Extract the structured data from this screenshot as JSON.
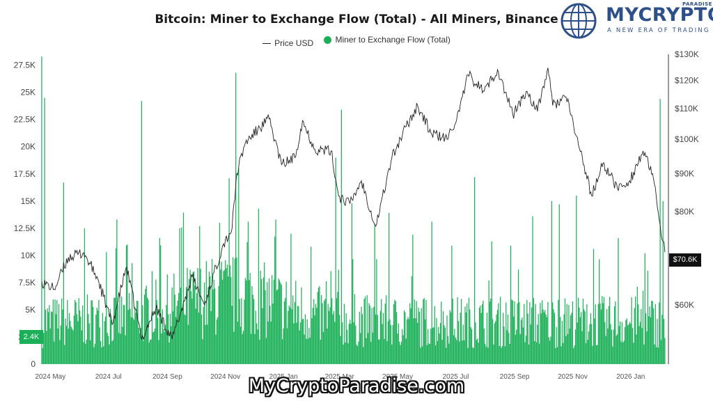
{
  "brand": {
    "name": "MYCRYPTO",
    "small": "PARADISE",
    "tagline": "A NEW ERA OF TRADING"
  },
  "watermark": "MyCryptoParadise.com",
  "colors": {
    "flow": "#1bb057",
    "price": "#222222",
    "brand_blue": "#2d4f8a",
    "brand_red": "#d8262e",
    "axis_text": "#444444"
  },
  "chart_data": {
    "type": "bar",
    "title": "Bitcoin: Miner to Exchange Flow (Total) - All Miners, Binance",
    "legend": [
      "Price USD",
      "Miner to Exchange Flow (Total)"
    ],
    "legend_position": "top-center",
    "grid": false,
    "x_ticks": [
      "2024 May",
      "2024 Jul",
      "2024 Sep",
      "2024 Nov",
      "2025 Jan",
      "2025 Mar",
      "2025 May",
      "2025 Jul",
      "2025 Sep",
      "2025 Nov",
      "2026 Jan"
    ],
    "x_range": [
      "2024-04-22",
      "2026-02-06"
    ],
    "y_left": {
      "ticks": [
        "0",
        "2.5K",
        "5K",
        "7.5K",
        "10K",
        "12.5K",
        "15K",
        "17.5K",
        "20K",
        "22.5K",
        "25K",
        "27.5K"
      ],
      "range": [
        0,
        28500
      ]
    },
    "y_right": {
      "scale": "log",
      "ticks": [
        "$60K",
        "$70K",
        "$80K",
        "$90K",
        "$100K",
        "$110K",
        "$120K",
        "$130K"
      ],
      "range": [
        50000,
        130000
      ]
    },
    "series": [
      {
        "name": "Price USD",
        "type": "line",
        "unit": "USD",
        "points": [
          [
            "2024-04-22",
            64500
          ],
          [
            "2024-05-05",
            63000
          ],
          [
            "2024-05-20",
            69500
          ],
          [
            "2024-06-05",
            70500
          ],
          [
            "2024-06-20",
            65000
          ],
          [
            "2024-07-05",
            56500
          ],
          [
            "2024-07-20",
            67500
          ],
          [
            "2024-08-05",
            54000
          ],
          [
            "2024-08-20",
            59500
          ],
          [
            "2024-09-06",
            54000
          ],
          [
            "2024-09-27",
            65500
          ],
          [
            "2024-10-10",
            60000
          ],
          [
            "2024-10-29",
            72000
          ],
          [
            "2024-11-08",
            76000
          ],
          [
            "2024-11-13",
            90000
          ],
          [
            "2024-11-22",
            99000
          ],
          [
            "2024-12-05",
            103000
          ],
          [
            "2024-12-17",
            106500
          ],
          [
            "2024-12-30",
            92500
          ],
          [
            "2025-01-13",
            94500
          ],
          [
            "2025-01-21",
            106000
          ],
          [
            "2025-02-03",
            97000
          ],
          [
            "2025-02-20",
            96500
          ],
          [
            "2025-02-28",
            84000
          ],
          [
            "2025-03-12",
            82000
          ],
          [
            "2025-03-24",
            88000
          ],
          [
            "2025-04-08",
            76500
          ],
          [
            "2025-04-25",
            94500
          ],
          [
            "2025-05-10",
            104000
          ],
          [
            "2025-05-22",
            111000
          ],
          [
            "2025-06-05",
            102000
          ],
          [
            "2025-06-22",
            100000
          ],
          [
            "2025-07-05",
            109000
          ],
          [
            "2025-07-14",
            122000
          ],
          [
            "2025-07-31",
            116000
          ],
          [
            "2025-08-14",
            124000
          ],
          [
            "2025-08-30",
            108000
          ],
          [
            "2025-09-14",
            116000
          ],
          [
            "2025-09-25",
            109000
          ],
          [
            "2025-10-06",
            124700
          ],
          [
            "2025-10-11",
            111000
          ],
          [
            "2025-10-25",
            114000
          ],
          [
            "2025-11-05",
            101000
          ],
          [
            "2025-11-21",
            84000
          ],
          [
            "2025-12-03",
            93000
          ],
          [
            "2025-12-18",
            86000
          ],
          [
            "2025-12-31",
            88000
          ],
          [
            "2026-01-14",
            96500
          ],
          [
            "2026-01-25",
            88500
          ],
          [
            "2026-01-31",
            78000
          ],
          [
            "2026-02-04",
            73000
          ],
          [
            "2026-02-06",
            70600
          ]
        ]
      },
      {
        "name": "Miner to Exchange Flow (Total)",
        "type": "bar",
        "unit": "BTC",
        "spikes": [
          [
            "2024-04-22",
            28300
          ],
          [
            "2024-04-25",
            24500
          ],
          [
            "2024-05-15",
            16700
          ],
          [
            "2024-06-06",
            12500
          ],
          [
            "2024-06-29",
            10300
          ],
          [
            "2024-07-10",
            13300
          ],
          [
            "2024-07-21",
            11000
          ],
          [
            "2024-08-05",
            24200
          ],
          [
            "2024-08-24",
            11600
          ],
          [
            "2024-09-14",
            12500
          ],
          [
            "2024-10-05",
            12700
          ],
          [
            "2024-10-26",
            13000
          ],
          [
            "2024-11-05",
            17100
          ],
          [
            "2024-11-12",
            26800
          ],
          [
            "2024-11-15",
            18000
          ],
          [
            "2024-12-06",
            14300
          ],
          [
            "2024-12-24",
            13300
          ],
          [
            "2025-01-09",
            12000
          ],
          [
            "2025-01-30",
            10800
          ],
          [
            "2025-02-25",
            19000
          ],
          [
            "2025-03-03",
            23400
          ],
          [
            "2025-03-14",
            14800
          ],
          [
            "2025-04-07",
            12900
          ],
          [
            "2025-04-22",
            13900
          ],
          [
            "2025-05-17",
            11900
          ],
          [
            "2025-06-06",
            13100
          ],
          [
            "2025-06-27",
            10900
          ],
          [
            "2025-07-21",
            17200
          ],
          [
            "2025-08-08",
            11300
          ],
          [
            "2025-08-28",
            10900
          ],
          [
            "2025-09-20",
            13600
          ],
          [
            "2025-10-10",
            15000
          ],
          [
            "2025-10-18",
            14700
          ],
          [
            "2025-11-05",
            15500
          ],
          [
            "2025-11-23",
            10600
          ],
          [
            "2025-12-19",
            11600
          ],
          [
            "2026-01-16",
            10200
          ],
          [
            "2026-02-01",
            24400
          ],
          [
            "2026-02-04",
            15000
          ]
        ],
        "latest_value": "2.4K"
      }
    ],
    "last_price_label": "$70.6K",
    "last_flow_label": "2.4K"
  }
}
